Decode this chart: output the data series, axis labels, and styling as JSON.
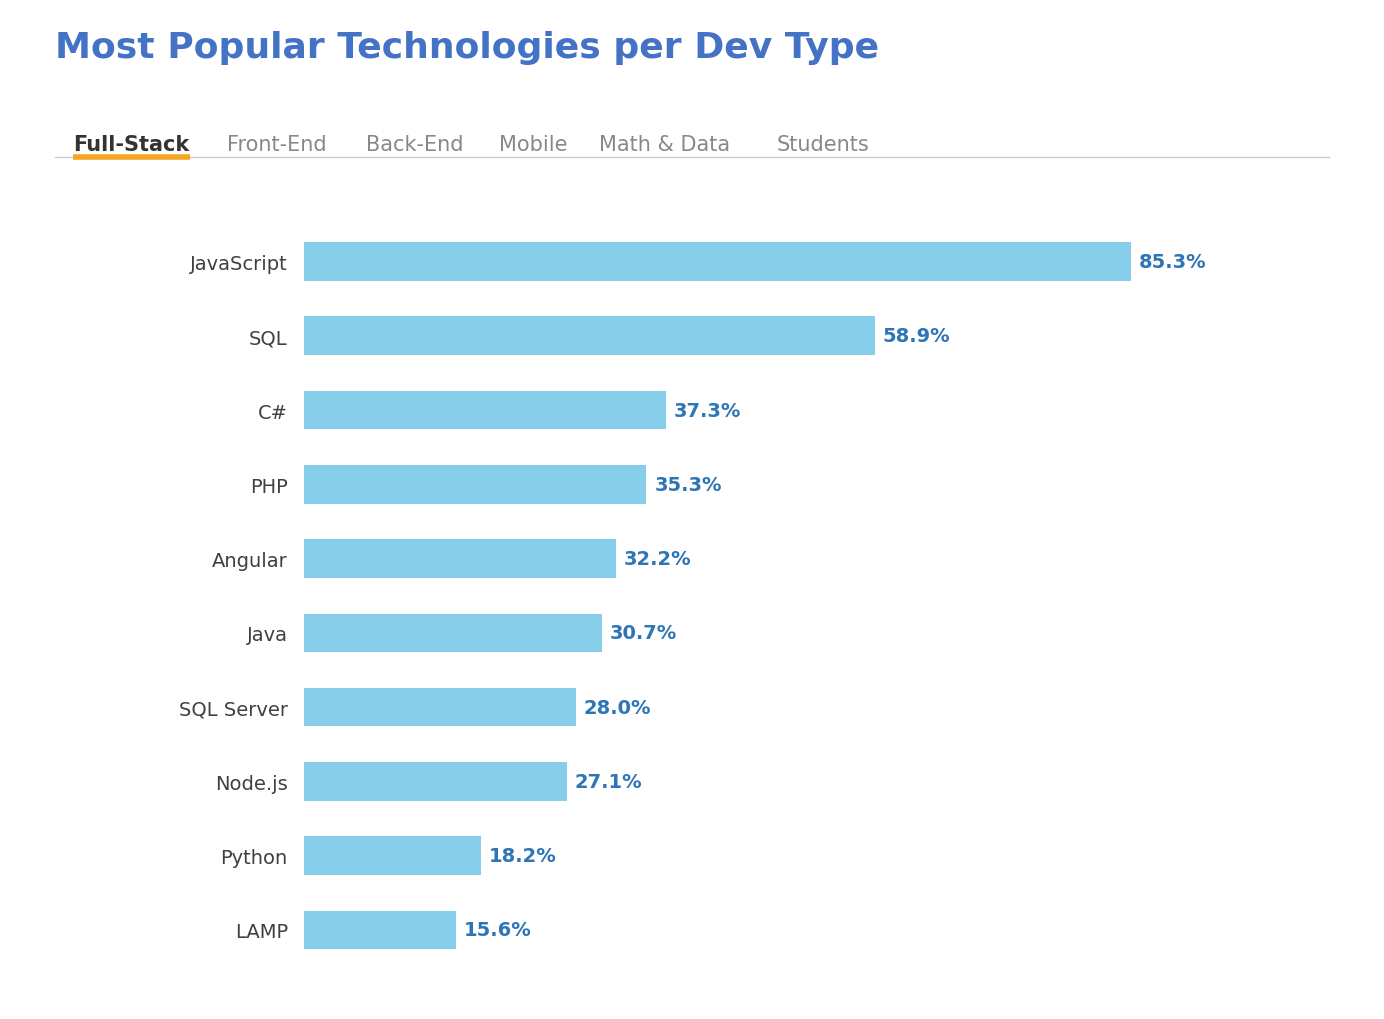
{
  "title": "Most Popular Technologies per Dev Type",
  "title_color": "#4472C4",
  "title_fontsize": 26,
  "tabs": [
    "Full-Stack",
    "Front-End",
    "Back-End",
    "Mobile",
    "Math & Data",
    "Students"
  ],
  "active_tab": "Full-Stack",
  "active_tab_color": "#F5A623",
  "tab_fontsize": 15,
  "categories": [
    "JavaScript",
    "SQL",
    "C#",
    "PHP",
    "Angular",
    "Java",
    "SQL Server",
    "Node.js",
    "Python",
    "LAMP"
  ],
  "values": [
    85.3,
    58.9,
    37.3,
    35.3,
    32.2,
    30.7,
    28.0,
    27.1,
    18.2,
    15.6
  ],
  "bar_color": "#87CEEB",
  "label_color": "#2E75B6",
  "label_fontsize": 14,
  "category_fontsize": 14,
  "category_color": "#404040",
  "background_color": "#FFFFFF",
  "xlim": [
    0,
    100
  ],
  "bar_height": 0.52
}
